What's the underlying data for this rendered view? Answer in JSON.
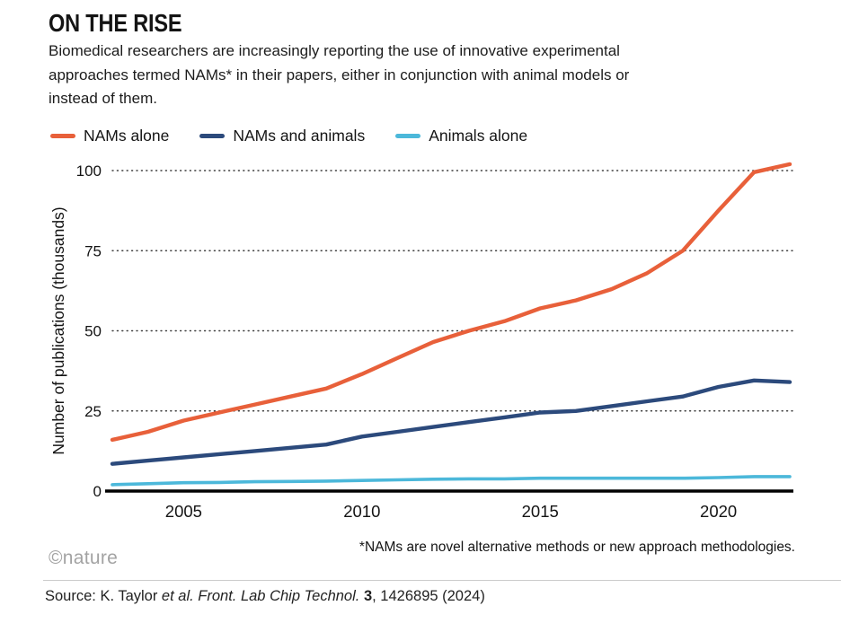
{
  "header": {
    "title": "ON THE RISE",
    "subtitle": "Biomedical researchers are increasingly reporting the use of innovative experimental\napproaches termed NAMs* in their papers, either in conjunction with animal models or\ninstead of them."
  },
  "legend": {
    "items": [
      {
        "label": "NAMs alone",
        "color": "#e8603a"
      },
      {
        "label": "NAMs and animals",
        "color": "#2c4a7c"
      },
      {
        "label": "Animals alone",
        "color": "#4cb8da"
      }
    ]
  },
  "chart_data": {
    "type": "line",
    "title": "ON THE RISE",
    "xlabel": "",
    "ylabel": "Number of publications (thousands)",
    "ylim": [
      0,
      105
    ],
    "grid": "dotted-horizontal",
    "legend_position": "top",
    "x": [
      2003,
      2004,
      2005,
      2006,
      2007,
      2008,
      2009,
      2010,
      2011,
      2012,
      2013,
      2014,
      2015,
      2016,
      2017,
      2018,
      2019,
      2020,
      2021,
      2022
    ],
    "x_ticks": [
      2005,
      2010,
      2015,
      2020
    ],
    "y_ticks": [
      0,
      25,
      50,
      75,
      100
    ],
    "series": [
      {
        "name": "NAMs alone",
        "color": "#e8603a",
        "values": [
          16,
          18.5,
          22,
          24.5,
          27,
          29.5,
          32,
          36.5,
          41.5,
          46.5,
          50,
          53,
          57,
          59.5,
          63,
          68,
          75,
          87.5,
          99.5,
          102
        ]
      },
      {
        "name": "NAMs and animals",
        "color": "#2c4a7c",
        "values": [
          8.5,
          9.5,
          10.5,
          11.5,
          12.5,
          13.5,
          14.5,
          17,
          18.5,
          20,
          21.5,
          23,
          24.5,
          25,
          26.5,
          28,
          29.5,
          32.5,
          34.5,
          34
        ]
      },
      {
        "name": "Animals alone",
        "color": "#4cb8da",
        "values": [
          2,
          2.3,
          2.6,
          2.7,
          2.9,
          3,
          3.1,
          3.3,
          3.5,
          3.7,
          3.8,
          3.8,
          4,
          4,
          4,
          4,
          4,
          4.2,
          4.5,
          4.5
        ]
      }
    ]
  },
  "footnote": "*NAMs are novel alternative methods or new approach methodologies.",
  "branding": {
    "logo": "©nature"
  },
  "source": {
    "prefix": "Source: K. Taylor ",
    "italic": "et al. Front. Lab Chip Technol.",
    "bold": " 3",
    "suffix": ", 1426895 (2024)"
  }
}
